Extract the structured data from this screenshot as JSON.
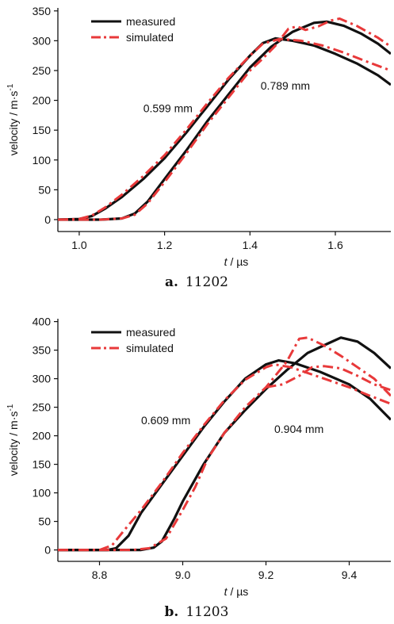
{
  "chart_data": [
    {
      "type": "line",
      "caption_letter": "a.",
      "caption_id": "11202",
      "xlabel_var": "t",
      "xlabel_unit": " / µs",
      "ylabel": "velocity / m·s",
      "ylabel_sup": "-1",
      "xlim": [
        0.95,
        1.73
      ],
      "ylim": [
        -20,
        355
      ],
      "xticks": [
        1.0,
        1.2,
        1.4,
        1.6
      ],
      "xtick_labels": [
        "1.0",
        "1.2",
        "1.4",
        "1.6"
      ],
      "yticks": [
        0,
        50,
        100,
        150,
        200,
        250,
        300,
        350
      ],
      "ytick_labels": [
        "0",
        "50",
        "100",
        "150",
        "200",
        "250",
        "300",
        "350"
      ],
      "legend_position": "top-left",
      "legend": [
        "measured",
        "simulated"
      ],
      "annotations": [
        {
          "text": "0.599 mm",
          "x": 1.15,
          "y": 180
        },
        {
          "text": "0.789 mm",
          "x": 1.425,
          "y": 218
        }
      ],
      "series": [
        {
          "name": "measured",
          "style": "solid",
          "color": "#111111",
          "points": [
            [
              0.95,
              0
            ],
            [
              1.0,
              1
            ],
            [
              1.03,
              6
            ],
            [
              1.06,
              18
            ],
            [
              1.1,
              38
            ],
            [
              1.15,
              68
            ],
            [
              1.2,
              103
            ],
            [
              1.25,
              145
            ],
            [
              1.3,
              190
            ],
            [
              1.35,
              235
            ],
            [
              1.4,
              275
            ],
            [
              1.43,
              296
            ],
            [
              1.46,
              304
            ],
            [
              1.5,
              300
            ],
            [
              1.55,
              292
            ],
            [
              1.6,
              278
            ],
            [
              1.65,
              262
            ],
            [
              1.7,
              242
            ],
            [
              1.73,
              226
            ]
          ]
        },
        {
          "name": "simulated",
          "style": "dashdot",
          "color": "#e8393a",
          "points": [
            [
              0.95,
              0
            ],
            [
              1.0,
              1
            ],
            [
              1.03,
              7
            ],
            [
              1.06,
              20
            ],
            [
              1.1,
              42
            ],
            [
              1.15,
              73
            ],
            [
              1.2,
              108
            ],
            [
              1.25,
              150
            ],
            [
              1.3,
              195
            ],
            [
              1.35,
              238
            ],
            [
              1.4,
              275
            ],
            [
              1.43,
              295
            ],
            [
              1.47,
              303
            ],
            [
              1.52,
              300
            ],
            [
              1.57,
              292
            ],
            [
              1.62,
              280
            ],
            [
              1.67,
              266
            ],
            [
              1.73,
              250
            ]
          ]
        },
        {
          "name": "measured",
          "style": "solid",
          "color": "#111111",
          "points": [
            [
              0.95,
              0
            ],
            [
              1.05,
              0
            ],
            [
              1.1,
              2
            ],
            [
              1.13,
              10
            ],
            [
              1.16,
              30
            ],
            [
              1.2,
              68
            ],
            [
              1.25,
              115
            ],
            [
              1.3,
              165
            ],
            [
              1.35,
              210
            ],
            [
              1.4,
              255
            ],
            [
              1.45,
              290
            ],
            [
              1.5,
              315
            ],
            [
              1.55,
              330
            ],
            [
              1.58,
              332
            ],
            [
              1.62,
              325
            ],
            [
              1.66,
              312
            ],
            [
              1.7,
              295
            ],
            [
              1.73,
              278
            ]
          ]
        },
        {
          "name": "simulated",
          "style": "dashdot",
          "color": "#e8393a",
          "points": [
            [
              0.95,
              0
            ],
            [
              1.05,
              0
            ],
            [
              1.1,
              2
            ],
            [
              1.13,
              8
            ],
            [
              1.16,
              27
            ],
            [
              1.2,
              63
            ],
            [
              1.25,
              110
            ],
            [
              1.3,
              160
            ],
            [
              1.35,
              205
            ],
            [
              1.4,
              250
            ],
            [
              1.43,
              270
            ],
            [
              1.46,
              292
            ],
            [
              1.49,
              320
            ],
            [
              1.51,
              324
            ],
            [
              1.53,
              318
            ],
            [
              1.56,
              324
            ],
            [
              1.59,
              334
            ],
            [
              1.61,
              337
            ],
            [
              1.65,
              325
            ],
            [
              1.7,
              305
            ],
            [
              1.73,
              290
            ]
          ]
        }
      ]
    },
    {
      "type": "line",
      "caption_letter": "b.",
      "caption_id": "11203",
      "xlabel_var": "t",
      "xlabel_unit": " / µs",
      "ylabel": "velocity / m·s",
      "ylabel_sup": "-1",
      "xlim": [
        8.7,
        9.5
      ],
      "ylim": [
        -20,
        405
      ],
      "xticks": [
        8.8,
        9.0,
        9.2,
        9.4
      ],
      "xtick_labels": [
        "8.8",
        "9.0",
        "9.2",
        "9.4"
      ],
      "yticks": [
        0,
        50,
        100,
        150,
        200,
        250,
        300,
        350,
        400
      ],
      "ytick_labels": [
        "0",
        "50",
        "100",
        "150",
        "200",
        "250",
        "300",
        "350",
        "400"
      ],
      "legend_position": "top-left",
      "legend": [
        "measured",
        "simulated"
      ],
      "annotations": [
        {
          "text": "0.609 mm",
          "x": 8.9,
          "y": 220
        },
        {
          "text": "0.904 mm",
          "x": 9.22,
          "y": 205
        }
      ],
      "series": [
        {
          "name": "measured",
          "style": "solid",
          "color": "#111111",
          "points": [
            [
              8.7,
              0
            ],
            [
              8.82,
              0
            ],
            [
              8.84,
              3
            ],
            [
              8.87,
              25
            ],
            [
              8.9,
              65
            ],
            [
              8.95,
              115
            ],
            [
              9.0,
              165
            ],
            [
              9.05,
              215
            ],
            [
              9.1,
              260
            ],
            [
              9.15,
              300
            ],
            [
              9.2,
              325
            ],
            [
              9.23,
              332
            ],
            [
              9.27,
              327
            ],
            [
              9.33,
              312
            ],
            [
              9.4,
              290
            ],
            [
              9.45,
              265
            ],
            [
              9.5,
              228
            ]
          ]
        },
        {
          "name": "simulated",
          "style": "dashdot",
          "color": "#e8393a",
          "points": [
            [
              8.7,
              0
            ],
            [
              8.8,
              0
            ],
            [
              8.83,
              8
            ],
            [
              8.86,
              35
            ],
            [
              8.9,
              70
            ],
            [
              8.95,
              118
            ],
            [
              9.0,
              170
            ],
            [
              9.05,
              218
            ],
            [
              9.1,
              262
            ],
            [
              9.15,
              298
            ],
            [
              9.2,
              320
            ],
            [
              9.22,
              325
            ],
            [
              9.26,
              320
            ],
            [
              9.32,
              305
            ],
            [
              9.4,
              285
            ],
            [
              9.45,
              270
            ],
            [
              9.5,
              256
            ]
          ]
        },
        {
          "name": "measured",
          "style": "solid",
          "color": "#111111",
          "points": [
            [
              8.7,
              0
            ],
            [
              8.9,
              0
            ],
            [
              8.93,
              4
            ],
            [
              8.95,
              15
            ],
            [
              8.98,
              55
            ],
            [
              9.0,
              85
            ],
            [
              9.05,
              150
            ],
            [
              9.1,
              205
            ],
            [
              9.15,
              245
            ],
            [
              9.2,
              282
            ],
            [
              9.25,
              315
            ],
            [
              9.3,
              345
            ],
            [
              9.35,
              362
            ],
            [
              9.38,
              372
            ],
            [
              9.42,
              365
            ],
            [
              9.46,
              345
            ],
            [
              9.5,
              318
            ]
          ]
        },
        {
          "name": "simulated",
          "style": "dashdot",
          "color": "#e8393a",
          "points": [
            [
              8.7,
              0
            ],
            [
              8.88,
              0
            ],
            [
              8.92,
              3
            ],
            [
              8.96,
              20
            ],
            [
              9.0,
              70
            ],
            [
              9.03,
              110
            ],
            [
              9.06,
              160
            ],
            [
              9.1,
              205
            ],
            [
              9.15,
              250
            ],
            [
              9.2,
              285
            ],
            [
              9.25,
              330
            ],
            [
              9.28,
              370
            ],
            [
              9.3,
              372
            ],
            [
              9.34,
              358
            ],
            [
              9.38,
              340
            ],
            [
              9.42,
              320
            ],
            [
              9.46,
              300
            ],
            [
              9.5,
              270
            ]
          ]
        },
        {
          "name": "simulated",
          "style": "dashdot",
          "color": "#e8393a",
          "points": [
            [
              9.2,
              285
            ],
            [
              9.24,
              290
            ],
            [
              9.28,
              305
            ],
            [
              9.31,
              320
            ],
            [
              9.34,
              322
            ],
            [
              9.38,
              318
            ],
            [
              9.42,
              305
            ],
            [
              9.46,
              290
            ],
            [
              9.5,
              280
            ]
          ]
        }
      ]
    }
  ]
}
